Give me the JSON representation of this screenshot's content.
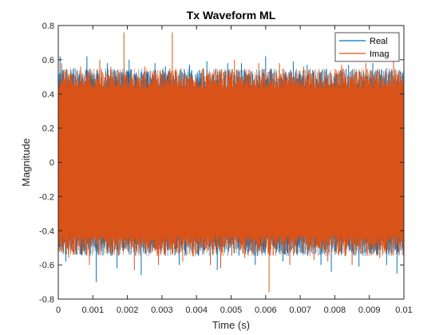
{
  "chart_data": {
    "type": "line",
    "title": "Tx Waveform ML",
    "xlabel": "Time (s)",
    "ylabel": "Magnitude",
    "xlim": [
      0,
      0.01
    ],
    "ylim": [
      -0.8,
      0.8
    ],
    "xticks": [
      0,
      0.001,
      0.002,
      0.003,
      0.004,
      0.005,
      0.006,
      0.007,
      0.008,
      0.009,
      0.01
    ],
    "xtick_labels": [
      "0",
      "0.001",
      "0.002",
      "0.003",
      "0.004",
      "0.005",
      "0.006",
      "0.007",
      "0.008",
      "0.009",
      "0.01"
    ],
    "yticks": [
      -0.8,
      -0.6,
      -0.4,
      -0.2,
      0,
      0.2,
      0.4,
      0.6,
      0.8
    ],
    "ytick_labels": [
      "-0.8",
      "-0.6",
      "-0.4",
      "-0.2",
      "0",
      "0.2",
      "0.4",
      "0.6",
      "0.8"
    ],
    "grid": false,
    "legend_position": "top-right",
    "series": [
      {
        "name": "Real",
        "color": "#0072BD",
        "dense_band": [
          -0.43,
          0.43
        ],
        "peak_x": [
          5e-05,
          0.00022,
          0.00045,
          0.00083,
          0.0011,
          0.00142,
          0.0017,
          0.00205,
          0.0024,
          0.0028,
          0.0031,
          0.0035,
          0.0038,
          0.0043,
          0.0046,
          0.0049,
          0.0053,
          0.0057,
          0.006,
          0.0065,
          0.0068,
          0.0072,
          0.0076,
          0.0079,
          0.0084,
          0.0087,
          0.0091,
          0.0095,
          0.0098
        ],
        "peak_y": [
          0.62,
          -0.58,
          0.55,
          0.62,
          -0.7,
          0.58,
          -0.62,
          0.6,
          -0.66,
          0.58,
          0.56,
          -0.6,
          0.57,
          0.59,
          -0.63,
          0.58,
          0.58,
          -0.6,
          0.62,
          -0.58,
          0.59,
          0.57,
          -0.6,
          -0.64,
          0.57,
          -0.61,
          0.58,
          -0.6,
          -0.65
        ]
      },
      {
        "name": "Imag",
        "color": "#D95319",
        "dense_band": [
          -0.43,
          0.43
        ],
        "peak_x": [
          0.0001,
          0.0003,
          0.00065,
          0.0009,
          0.0012,
          0.00152,
          0.0019,
          0.0022,
          0.0025,
          0.0029,
          0.0033,
          0.0036,
          0.0039,
          0.0042,
          0.0044,
          0.0047,
          0.0051,
          0.0054,
          0.0058,
          0.0061,
          0.0064,
          0.0067,
          0.0071,
          0.0074,
          0.0078,
          0.0082,
          0.0085,
          0.0089,
          0.0093,
          0.0097
        ],
        "peak_y": [
          0.58,
          -0.56,
          0.56,
          -0.6,
          0.6,
          0.56,
          0.76,
          -0.63,
          0.56,
          -0.6,
          0.76,
          -0.58,
          -0.55,
          0.55,
          -0.6,
          -0.62,
          0.6,
          -0.56,
          0.58,
          -0.76,
          0.58,
          -0.6,
          0.56,
          -0.57,
          -0.58,
          0.57,
          -0.6,
          0.58,
          -0.56,
          0.6
        ]
      }
    ]
  }
}
